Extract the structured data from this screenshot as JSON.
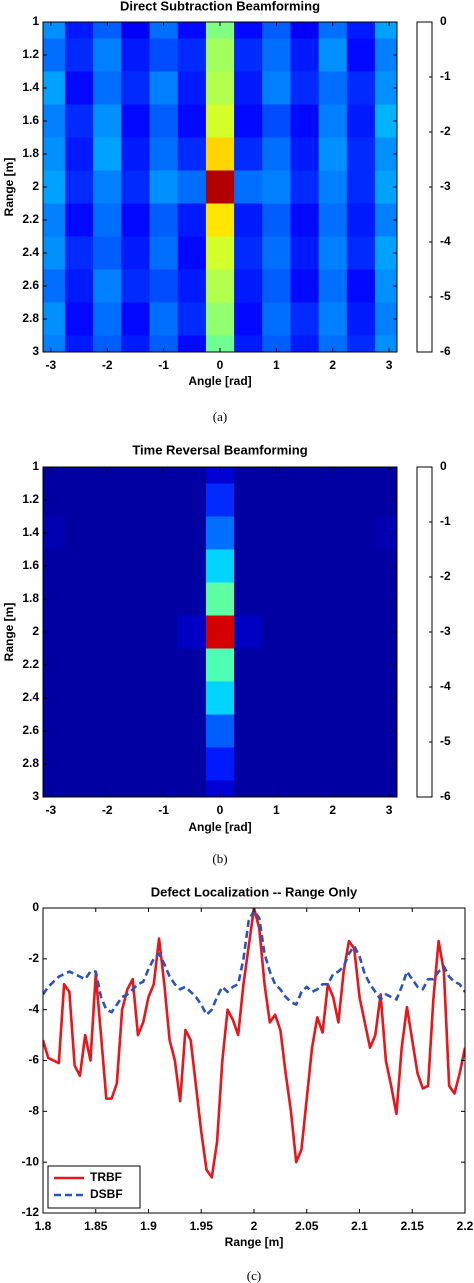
{
  "chart_data": [
    {
      "type": "heatmap",
      "title": "Direct Subtraction Beamforming",
      "xlabel": "Angle [rad]",
      "ylabel": "Range [m]",
      "caption": "(a)",
      "colormap": "jet",
      "x": [
        -3,
        -2.5,
        -2,
        -1.5,
        -1,
        -0.5,
        0,
        0.5,
        1,
        1.5,
        2,
        2.5,
        3
      ],
      "y": [
        1,
        1.2,
        1.4,
        1.6,
        1.8,
        2,
        2.2,
        2.4,
        2.6,
        2.8,
        3
      ],
      "z": [
        [
          -4.4,
          -5.1,
          -4.7,
          -5.3,
          -4.6,
          -5.2,
          -3.0,
          -5.2,
          -4.7,
          -5.3,
          -4.6,
          -5.1,
          -4.3
        ],
        [
          -4.6,
          -5.0,
          -4.5,
          -5.1,
          -4.8,
          -5.0,
          -2.8,
          -5.0,
          -4.6,
          -5.1,
          -4.4,
          -5.2,
          -4.5
        ],
        [
          -4.3,
          -5.2,
          -4.6,
          -5.0,
          -4.5,
          -5.1,
          -2.7,
          -5.1,
          -4.5,
          -5.0,
          -4.6,
          -5.0,
          -4.4
        ],
        [
          -4.5,
          -5.0,
          -4.4,
          -5.2,
          -4.7,
          -5.2,
          -2.5,
          -5.2,
          -4.8,
          -5.2,
          -4.5,
          -5.1,
          -4.2
        ],
        [
          -4.4,
          -5.1,
          -4.3,
          -5.1,
          -4.6,
          -5.0,
          -2.0,
          -5.0,
          -4.6,
          -5.1,
          -4.4,
          -5.0,
          -4.4
        ],
        [
          -4.3,
          -5.0,
          -4.5,
          -5.0,
          -4.4,
          -4.6,
          -0.3,
          -4.6,
          -4.5,
          -5.0,
          -4.5,
          -5.0,
          -4.3
        ],
        [
          -4.5,
          -5.2,
          -4.6,
          -5.2,
          -4.7,
          -5.1,
          -2.1,
          -5.1,
          -4.7,
          -5.2,
          -4.6,
          -5.1,
          -4.5
        ],
        [
          -4.4,
          -5.0,
          -4.7,
          -5.1,
          -4.6,
          -5.2,
          -2.5,
          -5.0,
          -4.6,
          -5.1,
          -4.5,
          -5.0,
          -4.3
        ],
        [
          -4.6,
          -5.1,
          -4.5,
          -5.0,
          -4.8,
          -5.1,
          -2.7,
          -5.1,
          -4.7,
          -5.2,
          -4.6,
          -5.2,
          -4.4
        ],
        [
          -4.4,
          -5.2,
          -4.6,
          -5.2,
          -4.6,
          -5.0,
          -2.9,
          -5.2,
          -4.6,
          -5.0,
          -4.5,
          -5.1,
          -4.5
        ],
        [
          -4.5,
          -5.1,
          -4.7,
          -5.1,
          -4.7,
          -5.2,
          -3.1,
          -5.1,
          -4.7,
          -5.1,
          -4.6,
          -5.0,
          -4.4
        ]
      ],
      "xlim": [
        -3.14,
        3.14
      ],
      "ylim": [
        1,
        3
      ],
      "xticks": [
        -3,
        -2,
        -1,
        0,
        1,
        2,
        3
      ],
      "yticks": [
        1,
        1.2,
        1.4,
        1.6,
        1.8,
        2,
        2.2,
        2.4,
        2.6,
        2.8,
        3
      ],
      "clim": [
        -6,
        0
      ],
      "cticks": [
        0,
        -1,
        -2,
        -3,
        -4,
        -5,
        -6
      ]
    },
    {
      "type": "heatmap",
      "title": "Time Reversal Beamforming",
      "xlabel": "Angle [rad]",
      "ylabel": "Range [m]",
      "caption": "(b)",
      "colormap": "jet",
      "x": [
        -3,
        -2.5,
        -2,
        -1.5,
        -1,
        -0.5,
        0,
        0.5,
        1,
        1.5,
        2,
        2.5,
        3
      ],
      "y": [
        1,
        1.2,
        1.4,
        1.6,
        1.8,
        2,
        2.2,
        2.4,
        2.6,
        2.8,
        3
      ],
      "z": [
        [
          -5.8,
          -5.8,
          -5.8,
          -5.8,
          -5.8,
          -5.8,
          -5.5,
          -5.8,
          -5.8,
          -5.8,
          -5.8,
          -5.8,
          -5.8
        ],
        [
          -5.8,
          -5.8,
          -5.8,
          -5.8,
          -5.8,
          -5.8,
          -5.0,
          -5.8,
          -5.8,
          -5.8,
          -5.8,
          -5.8,
          -5.8
        ],
        [
          -5.7,
          -5.8,
          -5.8,
          -5.8,
          -5.8,
          -5.8,
          -4.6,
          -5.8,
          -5.8,
          -5.8,
          -5.8,
          -5.8,
          -5.7
        ],
        [
          -5.8,
          -5.8,
          -5.8,
          -5.8,
          -5.8,
          -5.8,
          -4.0,
          -5.8,
          -5.8,
          -5.8,
          -5.8,
          -5.8,
          -5.8
        ],
        [
          -5.8,
          -5.8,
          -5.8,
          -5.8,
          -5.8,
          -5.8,
          -3.2,
          -5.8,
          -5.8,
          -5.8,
          -5.8,
          -5.8,
          -5.8
        ],
        [
          -5.8,
          -5.8,
          -5.8,
          -5.8,
          -5.8,
          -5.6,
          -0.5,
          -5.6,
          -5.8,
          -5.8,
          -5.8,
          -5.8,
          -5.8
        ],
        [
          -5.8,
          -5.8,
          -5.8,
          -5.8,
          -5.8,
          -5.8,
          -3.3,
          -5.8,
          -5.8,
          -5.8,
          -5.8,
          -5.8,
          -5.8
        ],
        [
          -5.8,
          -5.8,
          -5.8,
          -5.8,
          -5.8,
          -5.8,
          -4.0,
          -5.8,
          -5.8,
          -5.8,
          -5.8,
          -5.8,
          -5.8
        ],
        [
          -5.8,
          -5.8,
          -5.8,
          -5.8,
          -5.8,
          -5.8,
          -4.7,
          -5.8,
          -5.8,
          -5.8,
          -5.8,
          -5.8,
          -5.8
        ],
        [
          -5.8,
          -5.8,
          -5.8,
          -5.8,
          -5.8,
          -5.8,
          -5.1,
          -5.8,
          -5.8,
          -5.8,
          -5.8,
          -5.8,
          -5.8
        ],
        [
          -5.8,
          -5.8,
          -5.8,
          -5.8,
          -5.8,
          -5.8,
          -5.5,
          -5.8,
          -5.8,
          -5.8,
          -5.8,
          -5.8,
          -5.8
        ]
      ],
      "xlim": [
        -3.14,
        3.14
      ],
      "ylim": [
        1,
        3
      ],
      "xticks": [
        -3,
        -2,
        -1,
        0,
        1,
        2,
        3
      ],
      "yticks": [
        1,
        1.2,
        1.4,
        1.6,
        1.8,
        2,
        2.2,
        2.4,
        2.6,
        2.8,
        3
      ],
      "clim": [
        -6,
        0
      ],
      "cticks": [
        0,
        -1,
        -2,
        -3,
        -4,
        -5,
        -6
      ]
    },
    {
      "type": "line",
      "title": "Defect Localization -- Range Only",
      "xlabel": "Range [m]",
      "caption": "(c)",
      "legend": "lower left",
      "x": [
        1.8,
        1.805,
        1.81,
        1.815,
        1.82,
        1.825,
        1.83,
        1.835,
        1.84,
        1.845,
        1.85,
        1.855,
        1.86,
        1.865,
        1.87,
        1.875,
        1.88,
        1.885,
        1.89,
        1.895,
        1.9,
        1.905,
        1.91,
        1.915,
        1.92,
        1.925,
        1.93,
        1.935,
        1.94,
        1.945,
        1.95,
        1.955,
        1.96,
        1.965,
        1.97,
        1.975,
        1.98,
        1.985,
        1.99,
        1.995,
        2,
        2.005,
        2.01,
        2.015,
        2.02,
        2.025,
        2.03,
        2.035,
        2.04,
        2.045,
        2.05,
        2.055,
        2.06,
        2.065,
        2.07,
        2.075,
        2.08,
        2.085,
        2.09,
        2.095,
        2.1,
        2.105,
        2.11,
        2.115,
        2.12,
        2.125,
        2.13,
        2.135,
        2.14,
        2.145,
        2.15,
        2.155,
        2.16,
        2.165,
        2.17,
        2.175,
        2.18,
        2.185,
        2.19,
        2.195,
        2.2
      ],
      "series": [
        {
          "name": "TRBF",
          "color": "#e8161b",
          "linestyle": "solid",
          "values": [
            -5.2,
            -5.9,
            -6.0,
            -6.1,
            -3.0,
            -3.3,
            -6.2,
            -6.6,
            -5.0,
            -6.0,
            -2.6,
            -5.0,
            -7.5,
            -7.5,
            -6.9,
            -4.0,
            -3.2,
            -2.8,
            -5.0,
            -4.5,
            -3.5,
            -3.0,
            -1.2,
            -3.0,
            -5.2,
            -6.0,
            -7.6,
            -4.8,
            -5.2,
            -7.0,
            -8.8,
            -10.3,
            -10.6,
            -9.2,
            -6.0,
            -4.0,
            -4.4,
            -5.0,
            -3.0,
            -1.5,
            0,
            -0.8,
            -3.0,
            -4.5,
            -4.2,
            -4.8,
            -6.5,
            -8.0,
            -10.0,
            -9.5,
            -7.5,
            -5.5,
            -4.3,
            -4.9,
            -3.0,
            -3.5,
            -4.5,
            -2.5,
            -1.3,
            -1.6,
            -3.5,
            -4.5,
            -5.5,
            -5.0,
            -3.4,
            -6.0,
            -7.0,
            -8.1,
            -5.5,
            -3.9,
            -5.2,
            -6.5,
            -7.1,
            -7.0,
            -3.6,
            -1.3,
            -2.5,
            -7.0,
            -7.3,
            -6.5,
            -5.5
          ]
        },
        {
          "name": "DSBF",
          "color": "#2b54b8",
          "linestyle": "dashed",
          "values": [
            -3.4,
            -3.1,
            -2.9,
            -2.7,
            -2.6,
            -2.5,
            -2.6,
            -2.7,
            -2.8,
            -2.5,
            -2.5,
            -3.5,
            -4.0,
            -4.1,
            -3.8,
            -3.5,
            -3.4,
            -3.2,
            -3.0,
            -2.9,
            -2.4,
            -2.0,
            -1.8,
            -2.2,
            -2.7,
            -3.0,
            -3.2,
            -3.1,
            -3.3,
            -3.5,
            -3.8,
            -4.2,
            -4.0,
            -3.5,
            -3.1,
            -3.3,
            -3.1,
            -3.0,
            -2.0,
            -0.5,
            -0.1,
            -0.4,
            -1.8,
            -2.5,
            -3.0,
            -3.2,
            -3.5,
            -3.7,
            -3.8,
            -3.3,
            -3.1,
            -3.3,
            -3.2,
            -3.0,
            -3.0,
            -2.6,
            -2.5,
            -2.3,
            -1.8,
            -1.5,
            -1.9,
            -2.6,
            -3.0,
            -3.3,
            -3.6,
            -3.4,
            -3.5,
            -3.6,
            -3.1,
            -2.5,
            -2.8,
            -3.1,
            -3.2,
            -2.8,
            -2.8,
            -2.5,
            -2.3,
            -2.7,
            -2.9,
            -3.0,
            -3.3
          ]
        }
      ],
      "xlim": [
        1.8,
        2.2
      ],
      "ylim": [
        -12,
        0
      ],
      "xticks": [
        1.8,
        1.85,
        1.9,
        1.95,
        2,
        2.05,
        2.1,
        2.15,
        2.2
      ],
      "yticks": [
        0,
        -2,
        -4,
        -6,
        -8,
        -10,
        -12
      ]
    }
  ]
}
